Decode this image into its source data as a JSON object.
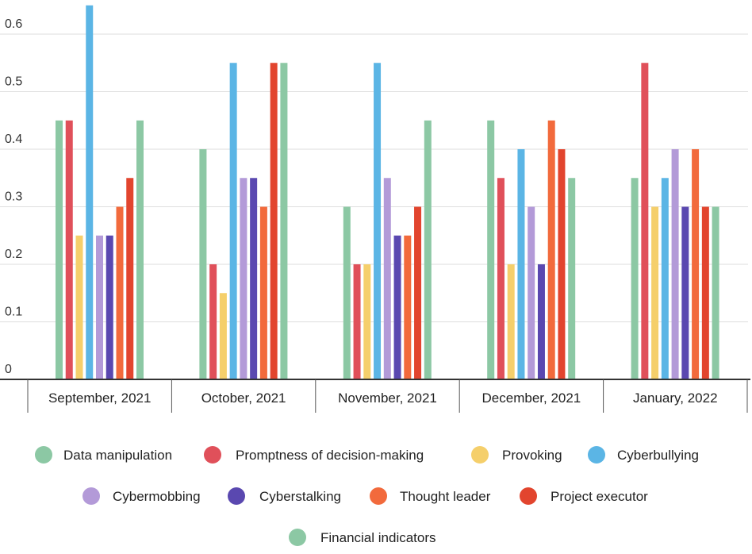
{
  "chart_data": {
    "type": "bar",
    "title": "",
    "xlabel": "",
    "ylabel": "",
    "ylim": [
      0,
      0.65
    ],
    "yticks": [
      0,
      0.1,
      0.2,
      0.3,
      0.4,
      0.5,
      0.6
    ],
    "ytick_labels": [
      "0",
      "0.1",
      "0.2",
      "0.3",
      "0.4",
      "0.5",
      "0.6"
    ],
    "grid": true,
    "legend_position": "bottom",
    "categories": [
      "September, 2021",
      "October, 2021",
      "November, 2021",
      "December, 2021",
      "January, 2022"
    ],
    "series": [
      {
        "name": "Data manipulation",
        "color": "#8cc8a4",
        "values": [
          0.45,
          0.4,
          0.3,
          0.45,
          0.35
        ]
      },
      {
        "name": "Promptness of decision-making",
        "color": "#e0505a",
        "values": [
          0.45,
          0.2,
          0.2,
          0.35,
          0.55
        ]
      },
      {
        "name": "Provoking",
        "color": "#f5cf6b",
        "values": [
          0.25,
          0.15,
          0.2,
          0.2,
          0.3
        ]
      },
      {
        "name": "Cyberbullying",
        "color": "#5bb5e5",
        "values": [
          0.65,
          0.55,
          0.55,
          0.4,
          0.35
        ]
      },
      {
        "name": "Cybermobbing",
        "color": "#b39ad8",
        "values": [
          0.25,
          0.35,
          0.35,
          0.3,
          0.4
        ]
      },
      {
        "name": "Cyberstalking",
        "color": "#5a48b0",
        "values": [
          0.25,
          0.35,
          0.25,
          0.2,
          0.3
        ]
      },
      {
        "name": "Thought leader",
        "color": "#f26a3c",
        "values": [
          0.3,
          0.3,
          0.25,
          0.45,
          0.4
        ]
      },
      {
        "name": "Project executor",
        "color": "#e2452e",
        "values": [
          0.35,
          0.55,
          0.3,
          0.4,
          0.3
        ]
      },
      {
        "name": "Financial indicators",
        "color": "#8cc8a4",
        "values": [
          0.45,
          0.55,
          0.45,
          0.35,
          0.3
        ]
      }
    ]
  }
}
